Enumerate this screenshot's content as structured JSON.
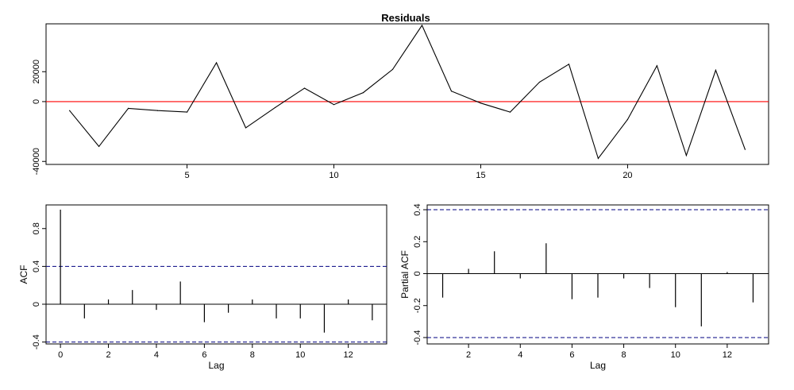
{
  "chart_data": [
    {
      "id": "residuals",
      "type": "line",
      "title": "Residuals",
      "xlabel": "",
      "ylabel": "",
      "xlim": [
        0.2,
        24.8
      ],
      "ylim": [
        -42000,
        52000
      ],
      "x_ticks": [
        5,
        10,
        15,
        20
      ],
      "y_ticks": [
        -40000,
        0,
        20000
      ],
      "x": [
        1,
        2,
        3,
        4,
        5,
        6,
        7,
        8,
        9,
        10,
        11,
        12,
        13,
        14,
        15,
        16,
        17,
        18,
        19,
        20,
        21,
        22,
        23,
        24
      ],
      "values": [
        -6000,
        -30000,
        -4500,
        -6000,
        -7000,
        26000,
        -17500,
        -4000,
        9000,
        -2000,
        6000,
        21500,
        51000,
        7000,
        -1000,
        -7000,
        13000,
        25000,
        -38000,
        -12000,
        24000,
        -36000,
        21000,
        -32000
      ],
      "reference_line": {
        "y": 0,
        "color": "#ff0000"
      },
      "line_color": "#000000",
      "grid": false
    },
    {
      "id": "acf",
      "type": "bar",
      "title": "",
      "xlabel": "Lag",
      "ylabel": "ACF",
      "xlim": [
        -0.6,
        13.6
      ],
      "ylim": [
        -0.42,
        1.05
      ],
      "x_ticks": [
        0,
        2,
        4,
        6,
        8,
        10,
        12
      ],
      "y_ticks": [
        -0.4,
        0.0,
        0.4,
        0.8
      ],
      "lags": [
        0,
        1,
        2,
        3,
        4,
        5,
        6,
        7,
        8,
        9,
        10,
        11,
        12,
        13
      ],
      "values": [
        1.0,
        -0.15,
        0.05,
        0.15,
        -0.06,
        0.24,
        -0.19,
        -0.09,
        0.05,
        -0.15,
        -0.15,
        -0.3,
        0.05,
        -0.17
      ],
      "confidence_bounds": [
        0.4,
        -0.4
      ],
      "bound_color": "#000080",
      "grid": false
    },
    {
      "id": "pacf",
      "type": "bar",
      "title": "",
      "xlabel": "Lag",
      "ylabel": "Partial ACF",
      "xlim": [
        0.4,
        13.6
      ],
      "ylim": [
        -0.44,
        0.43
      ],
      "x_ticks": [
        2,
        4,
        6,
        8,
        10,
        12
      ],
      "y_ticks": [
        -0.4,
        -0.2,
        0.0,
        0.2,
        0.4
      ],
      "lags": [
        1,
        2,
        3,
        4,
        5,
        6,
        7,
        8,
        9,
        10,
        11,
        12,
        13
      ],
      "values": [
        -0.15,
        0.03,
        0.14,
        -0.03,
        0.19,
        -0.16,
        -0.15,
        -0.03,
        -0.09,
        -0.21,
        -0.33,
        0.01,
        -0.18
      ],
      "confidence_bounds": [
        0.4,
        -0.4
      ],
      "bound_color": "#000080",
      "grid": false
    }
  ]
}
